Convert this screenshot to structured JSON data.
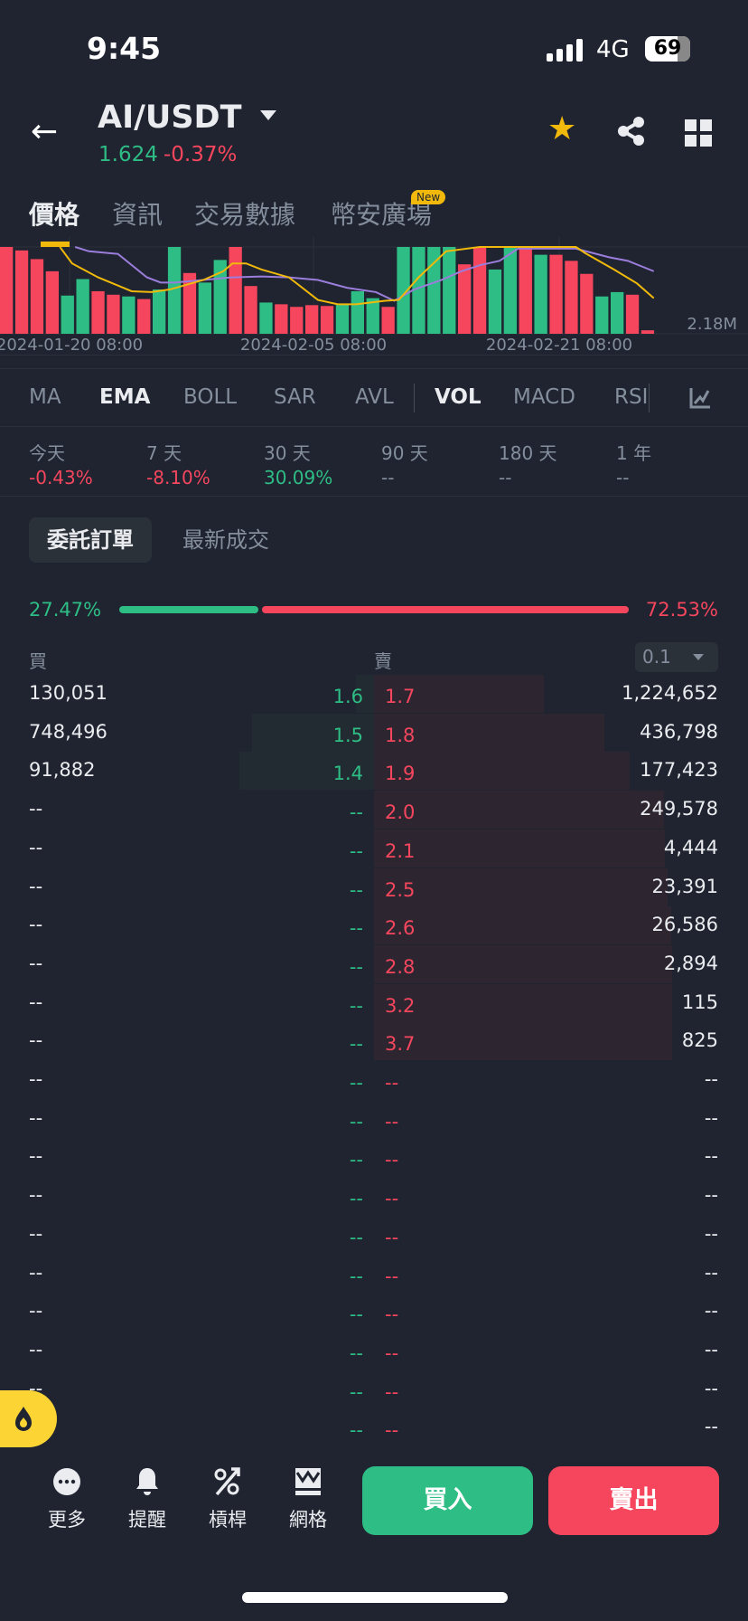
{
  "status_bar": {
    "time": "9:45",
    "network": "4G",
    "battery": "69"
  },
  "header": {
    "pair": "AI/USDT",
    "price": "1.624",
    "change": "-0.37%",
    "icons": [
      "back-arrow-icon",
      "favorite-star-icon",
      "share-icon",
      "grid-icon"
    ]
  },
  "tabs": [
    {
      "label": "價格",
      "active": true
    },
    {
      "label": "資訊"
    },
    {
      "label": "交易數據"
    },
    {
      "label": "幣安廣場",
      "badge": "New"
    }
  ],
  "chart_data": {
    "type": "bar",
    "x_ticks": [
      "2024-01-20 08:00",
      "2024-02-05 08:00",
      "2024-02-21 08:00"
    ],
    "last_value_label": "2.18M",
    "note_units": "relative volume, percent of panel height (top clipped at 100)",
    "colors": {
      "up": "#2ebd85",
      "down": "#f6465d",
      "ema_fast": "#f0b90b",
      "ema_slow": "#9b7ddb"
    },
    "bars": [
      [
        "d",
        100
      ],
      [
        "d",
        96
      ],
      [
        "d",
        86
      ],
      [
        "d",
        72
      ],
      [
        "u",
        44
      ],
      [
        "u",
        63
      ],
      [
        "d",
        49
      ],
      [
        "d",
        45
      ],
      [
        "u",
        43
      ],
      [
        "d",
        40
      ],
      [
        "u",
        51
      ],
      [
        "u",
        100
      ],
      [
        "d",
        70
      ],
      [
        "u",
        59
      ],
      [
        "u",
        85
      ],
      [
        "d",
        100
      ],
      [
        "d",
        55
      ],
      [
        "u",
        36
      ],
      [
        "d",
        34
      ],
      [
        "d",
        31
      ],
      [
        "d",
        33
      ],
      [
        "d",
        32
      ],
      [
        "u",
        34
      ],
      [
        "u",
        49
      ],
      [
        "u",
        41
      ],
      [
        "d",
        31
      ],
      [
        "u",
        100
      ],
      [
        "u",
        100
      ],
      [
        "u",
        100
      ],
      [
        "u",
        100
      ],
      [
        "d",
        80
      ],
      [
        "d",
        99
      ],
      [
        "u",
        74
      ],
      [
        "u",
        100
      ],
      [
        "d",
        100
      ],
      [
        "u",
        91
      ],
      [
        "d",
        91
      ],
      [
        "d",
        84
      ],
      [
        "d",
        69
      ],
      [
        "u",
        43
      ],
      [
        "u",
        48
      ],
      [
        "d",
        45
      ],
      [
        "d",
        4
      ]
    ],
    "ema_fast": [
      [
        3.5,
        100
      ],
      [
        4.3,
        81
      ],
      [
        6,
        65
      ],
      [
        8.2,
        49
      ],
      [
        9.5,
        48
      ],
      [
        10.7,
        51
      ],
      [
        12.9,
        62
      ],
      [
        14.2,
        72
      ],
      [
        14.8,
        81
      ],
      [
        15.7,
        81
      ],
      [
        16.7,
        74
      ],
      [
        18.5,
        65
      ],
      [
        20.4,
        39
      ],
      [
        21.7,
        34
      ],
      [
        22.9,
        34
      ],
      [
        24.8,
        38
      ],
      [
        25.7,
        39
      ],
      [
        27,
        65
      ],
      [
        28.8,
        95
      ],
      [
        31,
        100
      ],
      [
        37.3,
        100
      ],
      [
        37.9,
        93
      ],
      [
        39.8,
        74
      ],
      [
        41.3,
        58
      ],
      [
        42.4,
        41
      ]
    ],
    "ema_slow": [
      [
        4.5,
        100
      ],
      [
        5.4,
        95
      ],
      [
        7.3,
        92
      ],
      [
        9.2,
        65
      ],
      [
        10.1,
        59
      ],
      [
        11,
        59
      ],
      [
        12.9,
        62
      ],
      [
        14.8,
        65
      ],
      [
        16.7,
        66
      ],
      [
        18.5,
        65
      ],
      [
        20.4,
        62
      ],
      [
        22.3,
        53
      ],
      [
        24.2,
        48
      ],
      [
        25.4,
        38
      ],
      [
        26.7,
        51
      ],
      [
        28.5,
        62
      ],
      [
        29.8,
        72
      ],
      [
        31,
        79
      ],
      [
        32.3,
        84
      ],
      [
        33.5,
        98
      ],
      [
        37.3,
        98
      ],
      [
        39.5,
        88
      ],
      [
        40.7,
        84
      ],
      [
        42.4,
        72
      ]
    ]
  },
  "indicators": [
    {
      "label": "MA"
    },
    {
      "label": "EMA",
      "active": true
    },
    {
      "label": "BOLL"
    },
    {
      "label": "SAR"
    },
    {
      "label": "AVL"
    },
    {
      "label": "VOL",
      "active": true
    },
    {
      "label": "MACD"
    },
    {
      "label": "RSI"
    }
  ],
  "periods": [
    {
      "label": "今天",
      "value": "-0.43%",
      "trend": "down"
    },
    {
      "label": "7 天",
      "value": "-8.10%",
      "trend": "down"
    },
    {
      "label": "30 天",
      "value": "30.09%",
      "trend": "up"
    },
    {
      "label": "90 天",
      "value": "--"
    },
    {
      "label": "180 天",
      "value": "--"
    },
    {
      "label": "1 年",
      "value": "--"
    }
  ],
  "orderbook": {
    "tabs": [
      "委託訂單",
      "最新成交"
    ],
    "bid_pct": "27.47%",
    "ask_pct": "72.53%",
    "bid_ratio": 27.47,
    "bid_header": "買",
    "ask_header": "賣",
    "step": "0.1",
    "bids": [
      [
        "130,051",
        "1.6"
      ],
      [
        "748,496",
        "1.5"
      ],
      [
        "91,882",
        "1.4"
      ],
      [
        "--",
        "--"
      ],
      [
        "--",
        "--"
      ],
      [
        "--",
        "--"
      ],
      [
        "--",
        "--"
      ],
      [
        "--",
        "--"
      ],
      [
        "--",
        "--"
      ],
      [
        "--",
        "--"
      ],
      [
        "--",
        "--"
      ],
      [
        "--",
        "--"
      ],
      [
        "--",
        "--"
      ],
      [
        "--",
        "--"
      ],
      [
        "--",
        "--"
      ],
      [
        "--",
        "--"
      ],
      [
        "--",
        "--"
      ],
      [
        "--",
        "--"
      ],
      [
        "--",
        "--"
      ],
      [
        "--",
        "--"
      ]
    ],
    "asks": [
      [
        "1.7",
        "1,224,652"
      ],
      [
        "1.8",
        "436,798"
      ],
      [
        "1.9",
        "177,423"
      ],
      [
        "2.0",
        "249,578"
      ],
      [
        "2.1",
        "4,444"
      ],
      [
        "2.5",
        "23,391"
      ],
      [
        "2.6",
        "26,586"
      ],
      [
        "2.8",
        "2,894"
      ],
      [
        "3.2",
        "115"
      ],
      [
        "3.7",
        "825"
      ],
      [
        "--",
        "--"
      ],
      [
        "--",
        "--"
      ],
      [
        "--",
        "--"
      ],
      [
        "--",
        "--"
      ],
      [
        "--",
        "--"
      ],
      [
        "--",
        "--"
      ],
      [
        "--",
        "--"
      ],
      [
        "--",
        "--"
      ],
      [
        "--",
        "--"
      ],
      [
        "--",
        "--"
      ]
    ]
  },
  "bottom": {
    "tools": [
      {
        "label": "更多",
        "icon": "more-icon"
      },
      {
        "label": "提醒",
        "icon": "bell-icon"
      },
      {
        "label": "槓桿",
        "icon": "leverage-icon"
      },
      {
        "label": "網格",
        "icon": "grid-trading-icon"
      }
    ],
    "buy": "買入",
    "sell": "賣出"
  }
}
